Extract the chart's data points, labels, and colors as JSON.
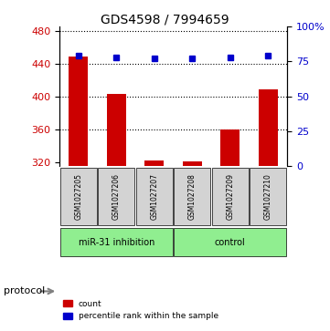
{
  "title": "GDS4598 / 7994659",
  "samples": [
    "GSM1027205",
    "GSM1027206",
    "GSM1027207",
    "GSM1027208",
    "GSM1027209",
    "GSM1027210"
  ],
  "counts": [
    449,
    403,
    322,
    321,
    360,
    408
  ],
  "percentile_ranks": [
    79,
    78,
    77,
    77,
    78,
    79
  ],
  "ylim_left": [
    315,
    485
  ],
  "ylim_right": [
    0,
    100
  ],
  "yticks_left": [
    320,
    360,
    400,
    440,
    480
  ],
  "yticks_right": [
    0,
    25,
    50,
    75,
    100
  ],
  "ytick_labels_right": [
    "0",
    "25",
    "50",
    "75",
    "100%"
  ],
  "bar_color": "#cc0000",
  "dot_color": "#0000cc",
  "bar_bottom": 315,
  "protocol_groups": [
    {
      "label": "miR-31 inhibition",
      "indices": [
        0,
        1,
        2
      ],
      "color": "#90ee90"
    },
    {
      "label": "control",
      "indices": [
        3,
        4,
        5
      ],
      "color": "#90ee90"
    }
  ],
  "protocol_label": "protocol",
  "legend_items": [
    {
      "color": "#cc0000",
      "label": "count"
    },
    {
      "color": "#0000cc",
      "label": "percentile rank within the sample"
    }
  ],
  "grid_color": "#000000",
  "plot_bg": "#ffffff",
  "sample_bg": "#d3d3d3",
  "fig_width": 3.61,
  "fig_height": 3.63
}
